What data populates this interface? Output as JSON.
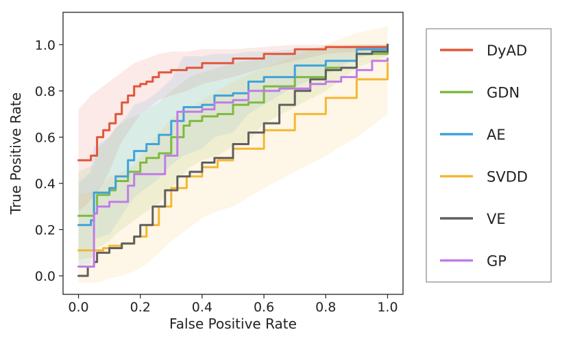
{
  "chart_data": {
    "type": "line",
    "title": "",
    "xlabel": "False Positive Rate",
    "ylabel": "True Positive Rate",
    "xlim": [
      -0.05,
      1.05
    ],
    "ylim": [
      -0.08,
      1.14
    ],
    "xticks": [
      0.0,
      0.2,
      0.4,
      0.6,
      0.8,
      1.0
    ],
    "xtick_labels": [
      "0.0",
      "0.2",
      "0.4",
      "0.6",
      "0.8",
      "1.0"
    ],
    "yticks": [
      0.0,
      0.2,
      0.4,
      0.6,
      0.8,
      1.0
    ],
    "ytick_labels": [
      "0.0",
      "0.2",
      "0.4",
      "0.6",
      "0.8",
      "1.0"
    ],
    "grid": false,
    "legend_position": "outside-right",
    "series": [
      {
        "name": "DyAD",
        "color": "#e2553a",
        "x": [
          0.0,
          0.02,
          0.04,
          0.06,
          0.08,
          0.1,
          0.12,
          0.14,
          0.16,
          0.18,
          0.2,
          0.22,
          0.24,
          0.26,
          0.3,
          0.35,
          0.4,
          0.5,
          0.6,
          0.7,
          0.8,
          0.9,
          1.0
        ],
        "y": [
          0.5,
          0.5,
          0.52,
          0.6,
          0.63,
          0.66,
          0.7,
          0.75,
          0.78,
          0.82,
          0.83,
          0.84,
          0.86,
          0.88,
          0.89,
          0.9,
          0.92,
          0.94,
          0.96,
          0.98,
          0.99,
          0.99,
          1.0
        ],
        "band_upper": [
          0.72,
          0.75,
          0.78,
          0.8,
          0.82,
          0.84,
          0.86,
          0.88,
          0.9,
          0.92,
          0.93,
          0.94,
          0.95,
          0.96,
          0.97,
          0.97,
          0.98,
          0.98,
          0.99,
          1.0,
          1.0,
          1.0,
          1.0
        ],
        "band_lower": [
          0.28,
          0.3,
          0.33,
          0.36,
          0.4,
          0.45,
          0.52,
          0.58,
          0.62,
          0.66,
          0.7,
          0.72,
          0.74,
          0.76,
          0.78,
          0.8,
          0.83,
          0.86,
          0.9,
          0.93,
          0.96,
          0.97,
          0.98
        ]
      },
      {
        "name": "GDN",
        "color": "#7eb93f",
        "x": [
          0.0,
          0.05,
          0.06,
          0.1,
          0.12,
          0.16,
          0.2,
          0.22,
          0.26,
          0.3,
          0.34,
          0.36,
          0.4,
          0.45,
          0.5,
          0.55,
          0.6,
          0.7,
          0.8,
          0.9,
          1.0
        ],
        "y": [
          0.26,
          0.27,
          0.35,
          0.37,
          0.41,
          0.45,
          0.49,
          0.51,
          0.53,
          0.6,
          0.65,
          0.67,
          0.69,
          0.7,
          0.74,
          0.75,
          0.82,
          0.86,
          0.9,
          0.96,
          0.98
        ],
        "band_upper": [
          0.45,
          0.48,
          0.55,
          0.6,
          0.64,
          0.68,
          0.7,
          0.72,
          0.75,
          0.8,
          0.84,
          0.86,
          0.88,
          0.9,
          0.92,
          0.93,
          0.95,
          0.97,
          0.98,
          0.99,
          1.0
        ],
        "band_lower": [
          0.07,
          0.08,
          0.12,
          0.15,
          0.18,
          0.22,
          0.26,
          0.28,
          0.31,
          0.38,
          0.44,
          0.47,
          0.5,
          0.52,
          0.56,
          0.58,
          0.66,
          0.73,
          0.8,
          0.9,
          0.95
        ]
      },
      {
        "name": "AE",
        "color": "#3ea2dc",
        "x": [
          0.0,
          0.04,
          0.05,
          0.1,
          0.12,
          0.16,
          0.18,
          0.22,
          0.26,
          0.3,
          0.34,
          0.4,
          0.44,
          0.5,
          0.55,
          0.6,
          0.7,
          0.8,
          0.9,
          1.0
        ],
        "y": [
          0.22,
          0.24,
          0.36,
          0.38,
          0.43,
          0.5,
          0.54,
          0.57,
          0.61,
          0.67,
          0.73,
          0.74,
          0.78,
          0.79,
          0.84,
          0.86,
          0.91,
          0.93,
          0.98,
          1.0
        ],
        "band_upper": [
          0.4,
          0.45,
          0.56,
          0.6,
          0.64,
          0.7,
          0.74,
          0.76,
          0.8,
          0.85,
          0.95,
          0.95,
          0.96,
          0.96,
          0.97,
          0.97,
          0.98,
          0.99,
          1.0,
          1.0
        ],
        "band_lower": [
          0.04,
          0.05,
          0.16,
          0.18,
          0.22,
          0.3,
          0.34,
          0.38,
          0.42,
          0.48,
          0.52,
          0.55,
          0.6,
          0.62,
          0.7,
          0.74,
          0.82,
          0.87,
          0.94,
          0.98
        ]
      },
      {
        "name": "SVDD",
        "color": "#f4b731",
        "x": [
          0.0,
          0.06,
          0.08,
          0.1,
          0.14,
          0.18,
          0.22,
          0.26,
          0.3,
          0.35,
          0.4,
          0.45,
          0.5,
          0.6,
          0.7,
          0.8,
          0.9,
          1.0
        ],
        "y": [
          0.11,
          0.11,
          0.12,
          0.13,
          0.14,
          0.17,
          0.22,
          0.3,
          0.38,
          0.43,
          0.47,
          0.5,
          0.55,
          0.63,
          0.7,
          0.77,
          0.85,
          0.92
        ],
        "band_upper": [
          0.35,
          0.37,
          0.4,
          0.43,
          0.45,
          0.48,
          0.55,
          0.62,
          0.68,
          0.72,
          0.76,
          0.8,
          0.84,
          0.9,
          0.95,
          1.0,
          1.05,
          1.08
        ],
        "band_lower": [
          -0.03,
          -0.03,
          -0.02,
          -0.01,
          0.0,
          0.02,
          0.05,
          0.1,
          0.15,
          0.2,
          0.25,
          0.28,
          0.3,
          0.38,
          0.45,
          0.52,
          0.6,
          0.7
        ]
      },
      {
        "name": "VE",
        "color": "#5f5f5f",
        "x": [
          0.0,
          0.03,
          0.05,
          0.06,
          0.1,
          0.14,
          0.18,
          0.2,
          0.24,
          0.28,
          0.32,
          0.36,
          0.4,
          0.44,
          0.5,
          0.55,
          0.6,
          0.65,
          0.7,
          0.75,
          0.8,
          0.85,
          0.9,
          0.95,
          1.0
        ],
        "y": [
          0.0,
          0.04,
          0.06,
          0.1,
          0.12,
          0.14,
          0.17,
          0.22,
          0.3,
          0.37,
          0.43,
          0.45,
          0.49,
          0.51,
          0.57,
          0.62,
          0.66,
          0.74,
          0.8,
          0.85,
          0.89,
          0.9,
          0.96,
          0.97,
          1.0
        ],
        "band_upper": [],
        "band_lower": []
      },
      {
        "name": "GP",
        "color": "#c07be8",
        "x": [
          0.0,
          0.04,
          0.05,
          0.06,
          0.1,
          0.16,
          0.18,
          0.22,
          0.26,
          0.28,
          0.32,
          0.34,
          0.4,
          0.44,
          0.5,
          0.55,
          0.6,
          0.65,
          0.7,
          0.75,
          0.8,
          0.85,
          0.9,
          0.95,
          1.0
        ],
        "y": [
          0.04,
          0.04,
          0.27,
          0.3,
          0.32,
          0.39,
          0.44,
          0.44,
          0.44,
          0.52,
          0.71,
          0.71,
          0.72,
          0.75,
          0.76,
          0.8,
          0.8,
          0.81,
          0.81,
          0.83,
          0.84,
          0.86,
          0.89,
          0.93,
          0.94
        ],
        "band_upper": [],
        "band_lower": []
      }
    ]
  }
}
